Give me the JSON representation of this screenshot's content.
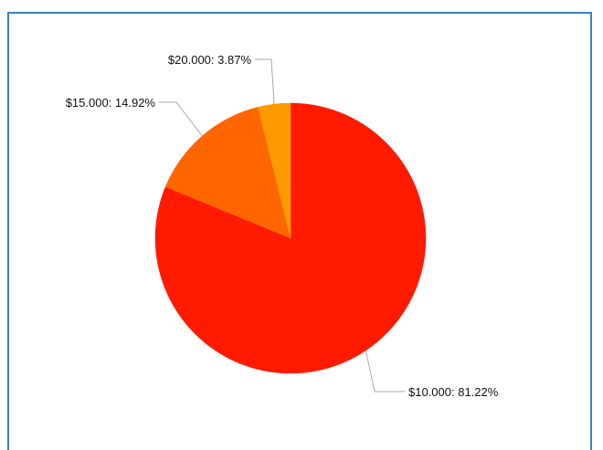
{
  "chart_data": {
    "type": "pie",
    "slices": [
      {
        "label": "$10.000",
        "percent": 81.22,
        "text": "$10.000: 81.22%",
        "color": "#ff1a00"
      },
      {
        "label": "$15.000",
        "percent": 14.92,
        "text": "$15.000: 14.92%",
        "color": "#ff6600"
      },
      {
        "label": "$20.000",
        "percent": 3.87,
        "text": "$20.000: 3.87%",
        "color": "#ff9900"
      }
    ],
    "start_angle_deg": 0,
    "direction": "clockwise",
    "legend": "none"
  },
  "colors": {
    "frame_border": "#3b82c4",
    "leader_line": "#aaaaaa"
  }
}
